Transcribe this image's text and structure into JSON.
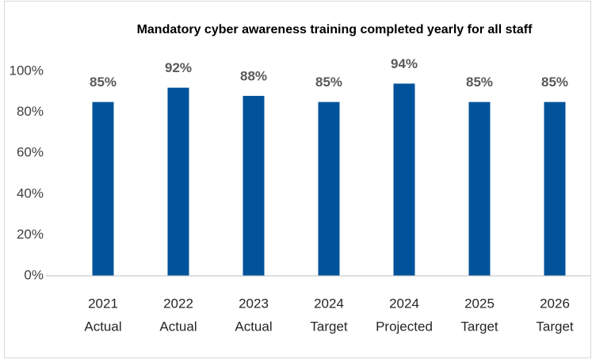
{
  "chart_data": {
    "type": "bar",
    "title": "Mandatory cyber awareness training completed yearly for all staff",
    "categories": [
      [
        "2021",
        "Actual"
      ],
      [
        "2022",
        "Actual"
      ],
      [
        "2023",
        "Actual"
      ],
      [
        "2024",
        "Target"
      ],
      [
        "2024",
        "Projected"
      ],
      [
        "2025",
        "Target"
      ],
      [
        "2026",
        "Target"
      ]
    ],
    "values": [
      85,
      92,
      88,
      85,
      94,
      85,
      85
    ],
    "value_labels": [
      "85%",
      "92%",
      "88%",
      "85%",
      "94%",
      "85%",
      "85%"
    ],
    "color": "#00539b",
    "ylim": [
      0,
      100
    ],
    "yticks": [
      {
        "value": 0,
        "label": "0%"
      },
      {
        "value": 20,
        "label": "20%"
      },
      {
        "value": 40,
        "label": "40%"
      },
      {
        "value": 60,
        "label": "60%"
      },
      {
        "value": 80,
        "label": "80%"
      },
      {
        "value": 100,
        "label": "100%"
      }
    ],
    "grid": false
  }
}
